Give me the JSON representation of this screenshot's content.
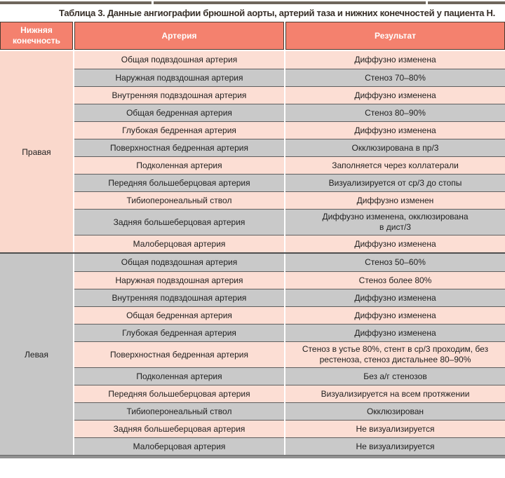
{
  "title": "Таблица 3. Данные ангиографии брюшной аорты, артерий таза и нижних конечностей у пациента Н.",
  "table": {
    "columns": [
      "Нижняя конечность",
      "Артерия",
      "Результат"
    ],
    "groups": [
      {
        "limb": "Правая",
        "rows": [
          {
            "artery": "Общая подвздошная артерия",
            "result": "Диффузно изменена"
          },
          {
            "artery": "Наружная подвздошная артерия",
            "result": "Стеноз 70–80%"
          },
          {
            "artery": "Внутренняя подвздошная артерия",
            "result": "Диффузно изменена"
          },
          {
            "artery": "Общая бедренная артерия",
            "result": "Стеноз 80–90%"
          },
          {
            "artery": "Глубокая бедренная артерия",
            "result": "Диффузно изменена"
          },
          {
            "artery": "Поверхностная бедренная артерия",
            "result": "Окклюзирована в пр/3"
          },
          {
            "artery": "Подколенная артерия",
            "result": "Заполняется через коллатерали"
          },
          {
            "artery": "Передняя большеберцовая артерия",
            "result": "Визуализируется от ср/3 до стопы"
          },
          {
            "artery": "Тибиоперонеальный ствол",
            "result": "Диффузно изменен"
          },
          {
            "artery": "Задняя большеберцовая артерия",
            "result": "Диффузно изменена, окклюзирована\nв дист/3"
          },
          {
            "artery": "Малоберцовая артерия",
            "result": "Диффузно изменена"
          }
        ]
      },
      {
        "limb": "Левая",
        "rows": [
          {
            "artery": "Общая подвздошная артерия",
            "result": "Стеноз 50–60%"
          },
          {
            "artery": "Наружная подвздошная артерия",
            "result": "Стеноз более 80%"
          },
          {
            "artery": "Внутренняя подвздошная артерия",
            "result": "Диффузно изменена"
          },
          {
            "artery": "Общая бедренная артерия",
            "result": "Диффузно изменена"
          },
          {
            "artery": "Глубокая бедренная артерия",
            "result": "Диффузно изменена"
          },
          {
            "artery": "Поверхностная бедренная артерия",
            "result": "Стеноз в устье 80%, стент в ср/3 проходим, без\nрестеноза, стеноз дистальнее 80–90%"
          },
          {
            "artery": "Подколенная артерия",
            "result": "Без а/г стенозов"
          },
          {
            "artery": "Передняя большеберцовая артерия",
            "result": "Визуализируется на всем протяжении"
          },
          {
            "artery": "Тибиоперонеальный ствол",
            "result": "Окклюзирован"
          },
          {
            "artery": "Задняя большеберцовая артерия",
            "result": "Не визуализируется"
          },
          {
            "artery": "Малоберцовая артерия",
            "result": "Не визуализируется"
          }
        ]
      }
    ]
  },
  "colors": {
    "header_bg": "#f4816e",
    "pink_row": "#fcded4",
    "gray_row": "#c9c9c9",
    "limb_pink": "#fad8cc",
    "limb_gray": "#c6c6c6",
    "separator": "#5f5f5f",
    "top_rule": "#6f665c",
    "bottom_rule": "#909090",
    "title_text": "#372f28"
  }
}
